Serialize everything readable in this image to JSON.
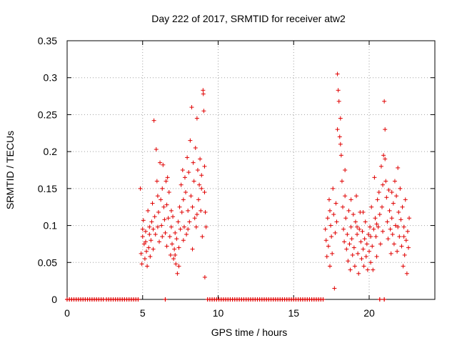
{
  "chart_data": {
    "type": "scatter",
    "title": "Day 222 of 2017, SRMTID for receiver atw2",
    "xlabel": "GPS time / hours",
    "ylabel": "SRMTID / TECUs",
    "xlim": [
      0,
      24.35
    ],
    "ylim": [
      0,
      0.35
    ],
    "x_ticks": [
      0,
      5,
      10,
      15,
      20
    ],
    "x_tick_labels": [
      "0",
      "5",
      "10",
      "15",
      "20"
    ],
    "y_ticks": [
      0,
      0.05,
      0.1,
      0.15,
      0.2,
      0.25,
      0.3,
      0.35
    ],
    "y_tick_labels": [
      "0",
      "0.05",
      "0.1",
      "0.15",
      "0.2",
      "0.25",
      "0.3",
      "0.35"
    ],
    "grid": true,
    "marker": "+",
    "colors": {
      "series": "#e00000",
      "grid": "#a0a0a0",
      "axis": "#000000"
    },
    "series": [
      {
        "name": "SRMTID",
        "points": [
          [
            4.85,
            0.15
          ],
          [
            4.9,
            0.062
          ],
          [
            4.95,
            0.048
          ],
          [
            5.0,
            0.085
          ],
          [
            5.05,
            0.107
          ],
          [
            5.1,
            0.075
          ],
          [
            5.15,
            0.055
          ],
          [
            5.2,
            0.092
          ],
          [
            5.25,
            0.065
          ],
          [
            5.3,
            0.045
          ],
          [
            5.35,
            0.12
          ],
          [
            5.4,
            0.07
          ],
          [
            5.45,
            0.098
          ],
          [
            5.5,
            0.058
          ],
          [
            5.55,
            0.08
          ],
          [
            5.6,
            0.105
          ],
          [
            5.65,
            0.13
          ],
          [
            5.7,
            0.095
          ],
          [
            5.75,
            0.242
          ],
          [
            5.8,
            0.112
          ],
          [
            5.85,
            0.088
          ],
          [
            5.9,
            0.203
          ],
          [
            5.95,
            0.16
          ],
          [
            6.0,
            0.14
          ],
          [
            6.05,
            0.118
          ],
          [
            6.1,
            0.078
          ],
          [
            6.15,
            0.185
          ],
          [
            6.2,
            0.135
          ],
          [
            6.25,
            0.1
          ],
          [
            6.3,
            0.15
          ],
          [
            6.35,
            0.182
          ],
          [
            6.4,
            0.125
          ],
          [
            6.45,
            0.108
          ],
          [
            6.5,
            0.09
          ],
          [
            6.55,
            0.16
          ],
          [
            6.6,
            0.072
          ],
          [
            6.65,
            0.165
          ],
          [
            6.7,
            0.11
          ],
          [
            6.75,
            0.145
          ],
          [
            6.8,
            0.085
          ],
          [
            6.85,
            0.06
          ],
          [
            6.9,
            0.098
          ],
          [
            6.95,
            0.075
          ],
          [
            7.0,
            0.112
          ],
          [
            7.05,
            0.055
          ],
          [
            7.1,
            0.068
          ],
          [
            7.15,
            0.09
          ],
          [
            7.2,
            0.048
          ],
          [
            7.25,
            0.082
          ],
          [
            7.3,
            0.035
          ],
          [
            7.35,
            0.105
          ],
          [
            7.4,
            0.07
          ],
          [
            7.45,
            0.125
          ],
          [
            7.5,
            0.095
          ],
          [
            7.55,
            0.155
          ],
          [
            7.6,
            0.118
          ],
          [
            7.65,
            0.175
          ],
          [
            7.7,
            0.135
          ],
          [
            7.75,
            0.098
          ],
          [
            7.8,
            0.165
          ],
          [
            7.85,
            0.145
          ],
          [
            7.9,
            0.088
          ],
          [
            7.95,
            0.192
          ],
          [
            8.0,
            0.12
          ],
          [
            8.05,
            0.172
          ],
          [
            8.1,
            0.105
          ],
          [
            8.15,
            0.215
          ],
          [
            8.2,
            0.14
          ],
          [
            8.25,
            0.26
          ],
          [
            8.3,
            0.125
          ],
          [
            8.35,
            0.185
          ],
          [
            8.4,
            0.16
          ],
          [
            8.45,
            0.11
          ],
          [
            8.5,
            0.205
          ],
          [
            8.55,
            0.098
          ],
          [
            8.6,
            0.245
          ],
          [
            8.65,
            0.175
          ],
          [
            8.7,
            0.135
          ],
          [
            8.75,
            0.155
          ],
          [
            8.8,
            0.19
          ],
          [
            8.85,
            0.12
          ],
          [
            8.9,
            0.168
          ],
          [
            8.95,
            0.085
          ],
          [
            9.0,
            0.283
          ],
          [
            9.02,
            0.278
          ],
          [
            9.05,
            0.255
          ],
          [
            9.1,
            0.145
          ],
          [
            9.12,
            0.03
          ],
          [
            9.15,
            0.118
          ],
          [
            9.2,
            0.098
          ],
          [
            5.0,
            0.095
          ],
          [
            5.2,
            0.078
          ],
          [
            5.45,
            0.088
          ],
          [
            5.7,
            0.068
          ],
          [
            6.0,
            0.098
          ],
          [
            6.3,
            0.085
          ],
          [
            6.6,
            0.128
          ],
          [
            6.9,
            0.12
          ],
          [
            7.15,
            0.06
          ],
          [
            7.4,
            0.045
          ],
          [
            7.7,
            0.08
          ],
          [
            8.0,
            0.095
          ],
          [
            8.3,
            0.068
          ],
          [
            8.6,
            0.115
          ],
          [
            8.9,
            0.15
          ],
          [
            9.1,
            0.18
          ],
          [
            17.1,
            0.095
          ],
          [
            17.15,
            0.08
          ],
          [
            17.2,
            0.058
          ],
          [
            17.25,
            0.11
          ],
          [
            17.3,
            0.072
          ],
          [
            17.35,
            0.135
          ],
          [
            17.4,
            0.045
          ],
          [
            17.45,
            0.1
          ],
          [
            17.5,
            0.085
          ],
          [
            17.55,
            0.062
          ],
          [
            17.6,
            0.15
          ],
          [
            17.65,
            0.115
          ],
          [
            17.7,
            0.015
          ],
          [
            17.75,
            0.09
          ],
          [
            17.8,
            0.13
          ],
          [
            17.85,
            0.105
          ],
          [
            17.9,
            0.305
          ],
          [
            17.95,
            0.283
          ],
          [
            18.0,
            0.268
          ],
          [
            18.05,
            0.22
          ],
          [
            18.1,
            0.245
          ],
          [
            18.15,
            0.195
          ],
          [
            18.2,
            0.16
          ],
          [
            18.25,
            0.125
          ],
          [
            18.3,
            0.095
          ],
          [
            18.35,
            0.078
          ],
          [
            18.4,
            0.14
          ],
          [
            18.45,
            0.11
          ],
          [
            18.5,
            0.068
          ],
          [
            18.55,
            0.088
          ],
          [
            18.6,
            0.052
          ],
          [
            18.65,
            0.12
          ],
          [
            18.7,
            0.075
          ],
          [
            18.75,
            0.04
          ],
          [
            18.8,
            0.098
          ],
          [
            18.85,
            0.082
          ],
          [
            18.9,
            0.06
          ],
          [
            18.95,
            0.115
          ],
          [
            19.0,
            0.07
          ],
          [
            19.05,
            0.045
          ],
          [
            19.1,
            0.105
          ],
          [
            19.15,
            0.14
          ],
          [
            19.2,
            0.088
          ],
          [
            19.25,
            0.062
          ],
          [
            19.3,
            0.035
          ],
          [
            19.35,
            0.095
          ],
          [
            19.4,
            0.118
          ],
          [
            19.45,
            0.078
          ],
          [
            19.5,
            0.055
          ],
          [
            19.55,
            0.092
          ],
          [
            19.6,
            0.068
          ],
          [
            19.65,
            0.045
          ],
          [
            19.7,
            0.082
          ],
          [
            19.75,
            0.105
          ],
          [
            19.8,
            0.058
          ],
          [
            19.85,
            0.075
          ],
          [
            19.9,
            0.04
          ],
          [
            19.95,
            0.088
          ],
          [
            20.0,
            0.065
          ],
          [
            20.05,
            0.098
          ],
          [
            20.1,
            0.05
          ],
          [
            20.15,
            0.125
          ],
          [
            20.2,
            0.072
          ],
          [
            20.25,
            0.04
          ],
          [
            20.3,
            0.095
          ],
          [
            20.35,
            0.165
          ],
          [
            20.4,
            0.11
          ],
          [
            20.45,
            0.085
          ],
          [
            20.5,
            0.058
          ],
          [
            20.55,
            0.135
          ],
          [
            20.6,
            0.098
          ],
          [
            20.65,
            0.145
          ],
          [
            20.7,
            0.115
          ],
          [
            20.75,
            0.075
          ],
          [
            20.8,
            0.18
          ],
          [
            20.85,
            0.125
          ],
          [
            20.9,
            0.092
          ],
          [
            20.95,
            0.195
          ],
          [
            21.0,
            0.268
          ],
          [
            21.05,
            0.23
          ],
          [
            21.1,
            0.16
          ],
          [
            21.15,
            0.138
          ],
          [
            21.2,
            0.105
          ],
          [
            21.25,
            0.082
          ],
          [
            21.3,
            0.148
          ],
          [
            21.35,
            0.12
          ],
          [
            21.4,
            0.095
          ],
          [
            21.45,
            0.062
          ],
          [
            21.5,
            0.11
          ],
          [
            21.55,
            0.088
          ],
          [
            21.6,
            0.13
          ],
          [
            21.65,
            0.075
          ],
          [
            21.7,
            0.16
          ],
          [
            21.75,
            0.1
          ],
          [
            21.8,
            0.14
          ],
          [
            21.85,
            0.065
          ],
          [
            21.9,
            0.178
          ],
          [
            21.95,
            0.118
          ],
          [
            22.0,
            0.085
          ],
          [
            22.05,
            0.15
          ],
          [
            22.1,
            0.108
          ],
          [
            22.15,
            0.072
          ],
          [
            22.2,
            0.125
          ],
          [
            22.25,
            0.045
          ],
          [
            22.3,
            0.098
          ],
          [
            22.35,
            0.06
          ],
          [
            22.4,
            0.135
          ],
          [
            22.45,
            0.08
          ],
          [
            22.5,
            0.035
          ],
          [
            22.55,
            0.092
          ],
          [
            22.6,
            0.07
          ],
          [
            22.65,
            0.11
          ],
          [
            17.4,
            0.12
          ],
          [
            17.9,
            0.23
          ],
          [
            18.1,
            0.21
          ],
          [
            18.4,
            0.175
          ],
          [
            18.8,
            0.135
          ],
          [
            19.2,
            0.098
          ],
          [
            19.6,
            0.118
          ],
          [
            20.1,
            0.085
          ],
          [
            20.5,
            0.102
          ],
          [
            20.9,
            0.155
          ],
          [
            21.05,
            0.19
          ],
          [
            21.5,
            0.145
          ],
          [
            21.9,
            0.098
          ],
          [
            22.3,
            0.085
          ]
        ],
        "zero_points": [
          0.0,
          0.15,
          0.3,
          0.45,
          0.6,
          0.75,
          0.9,
          1.05,
          1.2,
          1.35,
          1.5,
          1.65,
          1.8,
          1.95,
          2.1,
          2.25,
          2.4,
          2.6,
          2.75,
          2.9,
          3.05,
          3.2,
          3.35,
          3.5,
          3.65,
          3.8,
          3.95,
          4.1,
          4.25,
          4.4,
          4.55,
          4.7,
          6.5,
          9.3,
          9.45,
          9.6,
          9.75,
          9.9,
          10.05,
          10.2,
          10.35,
          10.5,
          10.65,
          10.8,
          10.95,
          11.1,
          11.25,
          11.4,
          11.55,
          11.7,
          11.85,
          12.0,
          12.15,
          12.3,
          12.45,
          12.6,
          12.75,
          12.9,
          13.05,
          13.2,
          13.35,
          13.5,
          13.65,
          13.8,
          13.95,
          14.1,
          14.25,
          14.4,
          14.55,
          14.7,
          14.85,
          15.0,
          15.15,
          15.3,
          15.45,
          15.6,
          15.75,
          15.9,
          16.05,
          16.2,
          16.35,
          16.5,
          16.65,
          16.8,
          16.95,
          20.7,
          21.0
        ]
      }
    ]
  }
}
